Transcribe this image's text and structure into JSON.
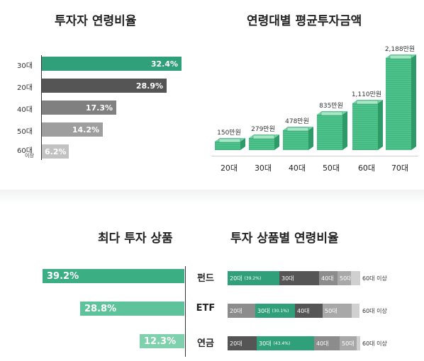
{
  "chart_data": [
    {
      "type": "bar",
      "orientation": "horizontal",
      "title": "투자자 연령비율",
      "categories": [
        "30대",
        "20대",
        "40대",
        "50대",
        "60대 이상"
      ],
      "category_labels": [
        {
          "main": "30대",
          "sub": ""
        },
        {
          "main": "20대",
          "sub": ""
        },
        {
          "main": "40대",
          "sub": ""
        },
        {
          "main": "50대",
          "sub": ""
        },
        {
          "main": "60대",
          "sub": "이상"
        }
      ],
      "values": [
        32.4,
        28.9,
        17.3,
        14.2,
        6.2
      ],
      "value_labels": [
        "32.4%",
        "28.9%",
        "17.3%",
        "14.2%",
        "6.2%"
      ],
      "colors": [
        "#2fa07a",
        "#555555",
        "#808080",
        "#9e9e9e",
        "#c2c2c2"
      ]
    },
    {
      "type": "bar",
      "title": "연령대별 평균투자금액",
      "categories": [
        "20대",
        "30대",
        "40대",
        "50대",
        "60대",
        "70대"
      ],
      "values": [
        150,
        279,
        478,
        835,
        1110,
        2188
      ],
      "value_labels": [
        "150만원",
        "279만원",
        "478만원",
        "835만원",
        "1,110만원",
        "2,188만원"
      ],
      "color": "#3cb87f"
    },
    {
      "type": "bar",
      "orientation": "horizontal",
      "title": "최다 투자 상품",
      "categories": [
        "펀드",
        "ETF",
        "연금"
      ],
      "values": [
        39.2,
        28.8,
        12.3
      ],
      "value_labels": [
        "39.2%",
        "28.8%",
        "12.3%"
      ],
      "colors": [
        "#3cae84",
        "#5ec39a",
        "#7fd0ad"
      ]
    },
    {
      "type": "bar",
      "stacked": true,
      "orientation": "horizontal",
      "title": "투자 상품별 연령비율",
      "categories": [
        "펀드",
        "ETF",
        "연금"
      ],
      "rows": [
        {
          "segments": [
            {
              "label": "20대",
              "detail": "(39.2%)",
              "value": 39.2,
              "color": "#2fa07a"
            },
            {
              "label": "30대",
              "detail": "",
              "value": 30.0,
              "color": "#555555"
            },
            {
              "label": "40대",
              "detail": "",
              "value": 14.0,
              "color": "#8c8c8c"
            },
            {
              "label": "50대",
              "detail": "",
              "value": 10.0,
              "color": "#a8a8a8"
            },
            {
              "label": "",
              "detail": "",
              "value": 6.8,
              "color": "#d0d0d0"
            }
          ],
          "tail": "60대 이상"
        },
        {
          "segments": [
            {
              "label": "20대",
              "detail": "",
              "value": 21.0,
              "color": "#8c8c8c"
            },
            {
              "label": "30대",
              "detail": "(30.1%)",
              "value": 30.1,
              "color": "#2fa07a"
            },
            {
              "label": "40대",
              "detail": "",
              "value": 21.0,
              "color": "#555555"
            },
            {
              "label": "50대",
              "detail": "",
              "value": 22.0,
              "color": "#a8a8a8"
            },
            {
              "label": "",
              "detail": "",
              "value": 5.9,
              "color": "#d0d0d0"
            }
          ],
          "tail": "60대 이상"
        },
        {
          "segments": [
            {
              "label": "20대",
              "detail": "",
              "value": 22.0,
              "color": "#555555"
            },
            {
              "label": "30대",
              "detail": "(43.4%)",
              "value": 43.4,
              "color": "#2fa07a"
            },
            {
              "label": "40대",
              "detail": "",
              "value": 19.0,
              "color": "#8c8c8c"
            },
            {
              "label": "50대",
              "detail": "",
              "value": 13.0,
              "color": "#a8a8a8"
            },
            {
              "label": "",
              "detail": "",
              "value": 2.6,
              "color": "#d0d0d0"
            }
          ],
          "tail": "60대 이상"
        }
      ]
    }
  ]
}
